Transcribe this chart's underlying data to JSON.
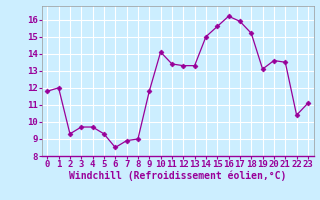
{
  "x": [
    0,
    1,
    2,
    3,
    4,
    5,
    6,
    7,
    8,
    9,
    10,
    11,
    12,
    13,
    14,
    15,
    16,
    17,
    18,
    19,
    20,
    21,
    22,
    23
  ],
  "y": [
    11.8,
    12.0,
    9.3,
    9.7,
    9.7,
    9.3,
    8.5,
    8.9,
    9.0,
    11.8,
    14.1,
    13.4,
    13.3,
    13.3,
    15.0,
    15.6,
    16.2,
    15.9,
    15.2,
    13.1,
    13.6,
    13.5,
    10.4,
    11.1
  ],
  "xlim": [
    -0.5,
    23.5
  ],
  "ylim": [
    8,
    16.8
  ],
  "yticks": [
    8,
    9,
    10,
    11,
    12,
    13,
    14,
    15,
    16
  ],
  "xticks": [
    0,
    1,
    2,
    3,
    4,
    5,
    6,
    7,
    8,
    9,
    10,
    11,
    12,
    13,
    14,
    15,
    16,
    17,
    18,
    19,
    20,
    21,
    22,
    23
  ],
  "xlabel": "Windchill (Refroidissement éolien,°C)",
  "line_color": "#990099",
  "marker": "D",
  "marker_size": 2.5,
  "bg_color": "#cceeff",
  "grid_color": "#ffffff",
  "tick_fontsize": 6.5,
  "xlabel_fontsize": 7.0
}
